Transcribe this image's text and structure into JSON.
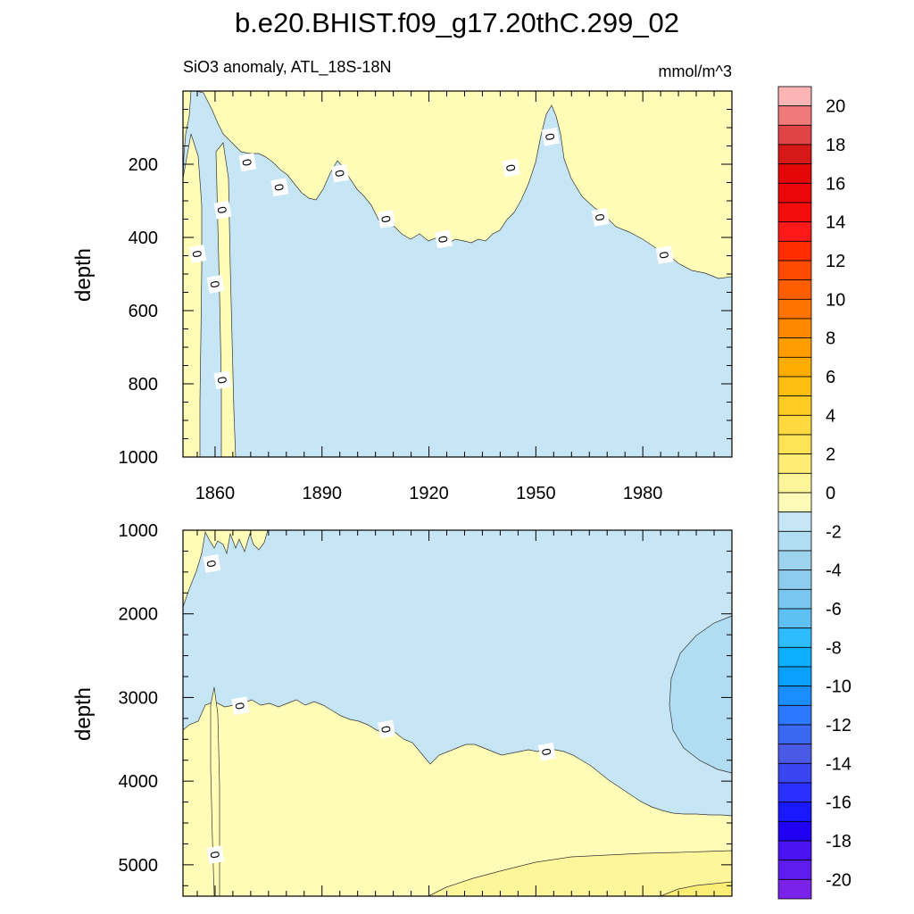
{
  "title": "b.e20.BHIST.f09_g17.20thC.299_02",
  "chart_data": {
    "type": "contour",
    "variable_label": "SiO3 anomaly, ATL_18S-18N",
    "units": "mmol/m^3",
    "xlabel": "",
    "x_ticks": [
      1860,
      1890,
      1920,
      1950,
      1980
    ],
    "xlim": [
      1851,
      2005
    ],
    "panels": [
      {
        "name": "upper",
        "ylabel": "depth",
        "ylim": [
          0,
          1000
        ],
        "y_ticks": [
          200,
          400,
          600,
          800,
          1000
        ],
        "contour_labels": [
          {
            "text": "0",
            "x": 1869,
            "y": 195,
            "angle": 80
          },
          {
            "text": "0",
            "x": 1878,
            "y": 263,
            "angle": 80
          },
          {
            "text": "0",
            "x": 1895,
            "y": 225,
            "angle": 80
          },
          {
            "text": "0",
            "x": 1908,
            "y": 350,
            "angle": 80
          },
          {
            "text": "0",
            "x": 1924,
            "y": 405,
            "angle": 80
          },
          {
            "text": "0",
            "x": 1943,
            "y": 210,
            "angle": 80
          },
          {
            "text": "0",
            "x": 1954,
            "y": 125,
            "angle": 80
          },
          {
            "text": "0",
            "x": 1968,
            "y": 345,
            "angle": 80
          },
          {
            "text": "0",
            "x": 1986,
            "y": 448,
            "angle": 80
          },
          {
            "text": "0",
            "x": 1855,
            "y": 445,
            "angle": 80
          },
          {
            "text": "0",
            "x": 1860,
            "y": 528,
            "angle": 80
          },
          {
            "text": "0",
            "x": 1862,
            "y": 325,
            "angle": 80
          },
          {
            "text": "0",
            "x": 1862,
            "y": 790,
            "angle": 80
          }
        ]
      },
      {
        "name": "lower",
        "ylabel": "depth",
        "ylim": [
          1000,
          5375
        ],
        "y_ticks": [
          1000,
          2000,
          3000,
          4000,
          5000
        ],
        "contour_labels": [
          {
            "text": "0",
            "x": 1859,
            "y": 1400,
            "angle": 80
          },
          {
            "text": "0",
            "x": 1867,
            "y": 3100,
            "angle": 80
          },
          {
            "text": "0",
            "x": 1908,
            "y": 3380,
            "angle": 80
          },
          {
            "text": "0",
            "x": 1953,
            "y": 3650,
            "angle": 80
          },
          {
            "text": "0",
            "x": 1860,
            "y": 4880,
            "angle": 80
          }
        ]
      }
    ],
    "colorbar": {
      "labels": [
        "20",
        "18",
        "16",
        "14",
        "12",
        "10",
        "8",
        "6",
        "4",
        "2",
        "0",
        "-2",
        "-4",
        "-6",
        "-8",
        "-10",
        "-12",
        "-14",
        "-16",
        "-18",
        "-20"
      ],
      "colors": [
        "#fbb5b5",
        "#f07a7a",
        "#e04444",
        "#d61818",
        "#e30707",
        "#ea0707",
        "#f30d0d",
        "#ff1919",
        "#ff2d00",
        "#ff4a00",
        "#ff5e00",
        "#ff7300",
        "#ff8800",
        "#ff9d00",
        "#ffae00",
        "#ffbf10",
        "#ffcc25",
        "#ffd940",
        "#ffe357",
        "#ffed76",
        "#fef59a",
        "#fefbb8",
        "#c6e6f6",
        "#b0ddf2",
        "#9dd3ef",
        "#8dccee",
        "#79c7f0",
        "#5ec0f5",
        "#2dbcff",
        "#0db0ff",
        "#0aa0ff",
        "#1a8dff",
        "#2c78ff",
        "#3a68f2",
        "#4a5ae6",
        "#3a45f2",
        "#2a30ff",
        "#1a18ff",
        "#2000f5",
        "#4a14f2",
        "#5e1cef",
        "#7a22e8"
      ]
    },
    "fill_colors": {
      "positive_low": "#fffcb8",
      "positive_mid": "#fff59a",
      "positive_high": "#ffee76",
      "negative_low": "#c6e6f6",
      "negative_mid": "#b0ddf2"
    }
  }
}
